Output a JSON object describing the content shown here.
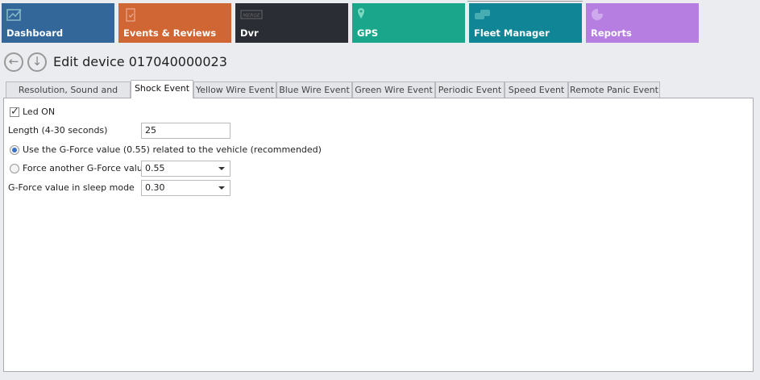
{
  "tiles": [
    {
      "label": "Dashboard",
      "icon": "chart-line-icon",
      "color": "#33679a"
    },
    {
      "label": "Events & Reviews",
      "icon": "clipboard-check-icon",
      "color": "#d06633"
    },
    {
      "label": "Dvr",
      "icon": "dvr-logo-icon",
      "color": "#2a2d33"
    },
    {
      "label": "GPS",
      "icon": "map-pin-icon",
      "color": "#1aa68a"
    },
    {
      "label": "Fleet Manager",
      "icon": "cars-icon",
      "color": "#0f8596"
    },
    {
      "label": "Reports",
      "icon": "pie-chart-icon",
      "color": "#b57ee0"
    }
  ],
  "page": {
    "title": "Edit device 017040000023"
  },
  "tabs": [
    "Resolution, Sound and Sleep",
    "Shock Event",
    "Yellow Wire Event",
    "Blue Wire Event",
    "Green Wire Event",
    "Periodic Event",
    "Speed Event",
    "Remote Panic Event"
  ],
  "active_tab": "Shock Event",
  "form": {
    "led_label": "Led ON",
    "led_checked": true,
    "length_label": "Length (4-30 seconds)",
    "length_value": "25",
    "radio_recommended": "Use the G-Force value (0.55) related to the vehicle (recommended)",
    "radio_force": "Force another G-Force value",
    "force_value": "0.55",
    "sleep_label": "G-Force value in sleep mode",
    "sleep_value": "0.30"
  }
}
